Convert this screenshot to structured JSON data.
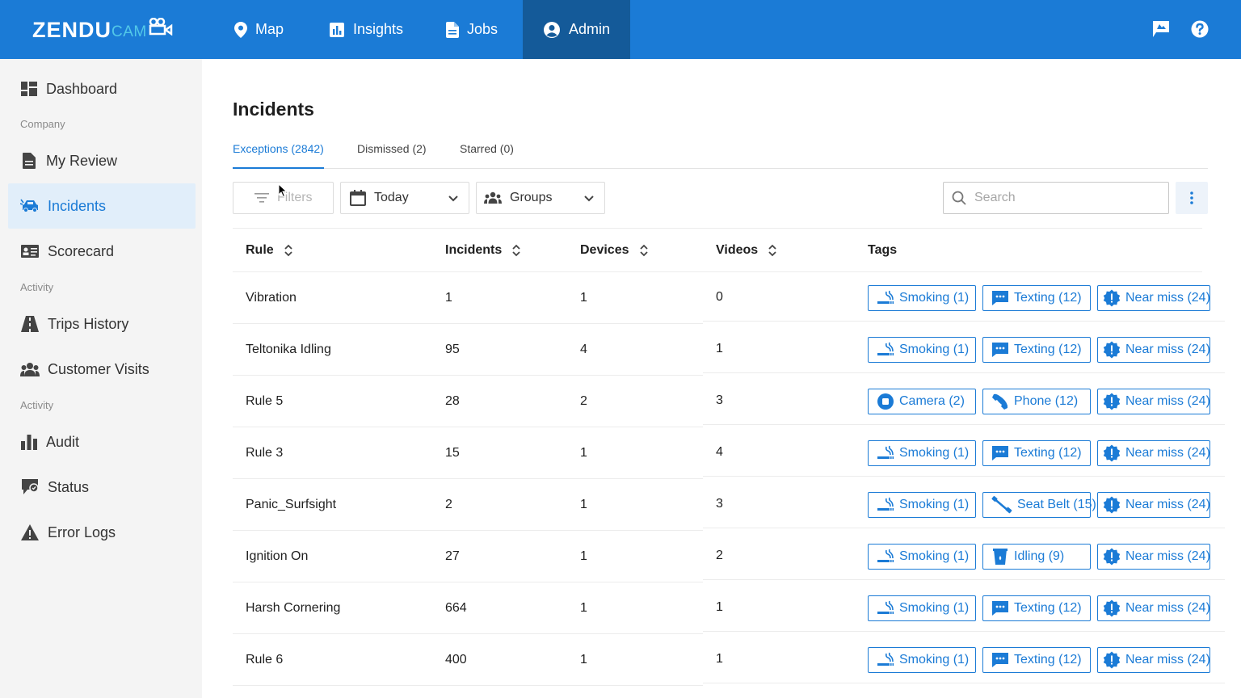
{
  "brand": {
    "logo_main": "ZENDU",
    "logo_sub": "CAM"
  },
  "topnav": [
    {
      "label": "Map",
      "icon": "map-pin-icon"
    },
    {
      "label": "Insights",
      "icon": "chart-icon"
    },
    {
      "label": "Jobs",
      "icon": "document-icon"
    },
    {
      "label": "Admin",
      "icon": "user-circle-icon",
      "active": true
    }
  ],
  "sidebar": {
    "dashboard": "Dashboard",
    "section_company": "Company",
    "my_review": "My Review",
    "incidents": "Incidents",
    "scorecard": "Scorecard",
    "section_activity_1": "Activity",
    "trips_history": "Trips History",
    "customer_visits": "Customer Visits",
    "section_activity_2": "Activity",
    "audit": "Audit",
    "status": "Status",
    "error_logs": "Error Logs"
  },
  "page": {
    "title": "Incidents"
  },
  "tabs": [
    {
      "label": "Exceptions (2842)",
      "active": true
    },
    {
      "label": "Dismissed (2)"
    },
    {
      "label": "Starred (0)"
    }
  ],
  "toolbar": {
    "filters": "Filters",
    "date": "Today",
    "groups": "Groups",
    "search_placeholder": "Search"
  },
  "table": {
    "headers": {
      "rule": "Rule",
      "incidents": "Incidents",
      "devices": "Devices",
      "videos": "Videos",
      "tags": "Tags"
    },
    "rows": [
      {
        "rule": "Vibration",
        "incidents": "1",
        "devices": "1",
        "videos": "0",
        "tags": [
          {
            "label": "Smoking (1)",
            "icon": "smoking-icon"
          },
          {
            "label": "Texting (12)",
            "icon": "message-icon"
          },
          {
            "label": "Near miss (24)",
            "icon": "alert-badge-icon"
          }
        ]
      },
      {
        "rule": "Teltonika Idling",
        "incidents": "95",
        "devices": "4",
        "videos": "1",
        "tags": [
          {
            "label": "Smoking (1)",
            "icon": "smoking-icon"
          },
          {
            "label": "Texting (12)",
            "icon": "message-icon"
          },
          {
            "label": "Near miss (24)",
            "icon": "alert-badge-icon"
          }
        ]
      },
      {
        "rule": "Rule 5",
        "incidents": "28",
        "devices": "2",
        "videos": "3",
        "tags": [
          {
            "label": "Camera (2)",
            "icon": "camera-stop-icon"
          },
          {
            "label": "Phone (12)",
            "icon": "phone-icon"
          },
          {
            "label": "Near miss (24)",
            "icon": "alert-badge-icon"
          }
        ]
      },
      {
        "rule": "Rule 3",
        "incidents": "15",
        "devices": "1",
        "videos": "4",
        "tags": [
          {
            "label": "Smoking (1)",
            "icon": "smoking-icon"
          },
          {
            "label": "Texting (12)",
            "icon": "message-icon"
          },
          {
            "label": "Near miss (24)",
            "icon": "alert-badge-icon"
          }
        ]
      },
      {
        "rule": "Panic_Surfsight",
        "incidents": "2",
        "devices": "1",
        "videos": "3",
        "tags": [
          {
            "label": "Smoking (1)",
            "icon": "smoking-icon"
          },
          {
            "label": "Seat Belt (15)",
            "icon": "seatbelt-icon"
          },
          {
            "label": "Near miss (24)",
            "icon": "alert-badge-icon"
          }
        ]
      },
      {
        "rule": "Ignition On",
        "incidents": "27",
        "devices": "1",
        "videos": "2",
        "tags": [
          {
            "label": "Smoking (1)",
            "icon": "smoking-icon"
          },
          {
            "label": "Idling (9)",
            "icon": "cup-icon"
          },
          {
            "label": "Near miss (24)",
            "icon": "alert-badge-icon"
          }
        ]
      },
      {
        "rule": "Harsh Cornering",
        "incidents": "664",
        "devices": "1",
        "videos": "1",
        "tags": [
          {
            "label": "Smoking (1)",
            "icon": "smoking-icon"
          },
          {
            "label": "Texting (12)",
            "icon": "message-icon"
          },
          {
            "label": "Near miss (24)",
            "icon": "alert-badge-icon"
          }
        ]
      },
      {
        "rule": "Rule 6",
        "incidents": "400",
        "devices": "1",
        "videos": "1",
        "tags": [
          {
            "label": "Smoking (1)",
            "icon": "smoking-icon"
          },
          {
            "label": "Texting (12)",
            "icon": "message-icon"
          },
          {
            "label": "Near miss (24)",
            "icon": "alert-badge-icon"
          }
        ]
      }
    ]
  },
  "colors": {
    "primary": "#1b7bd6",
    "nav_active": "#145a99",
    "sidebar_bg": "#f4f4f4",
    "sidebar_active_bg": "#e1eefa",
    "logo_accent": "#52c8e8"
  }
}
